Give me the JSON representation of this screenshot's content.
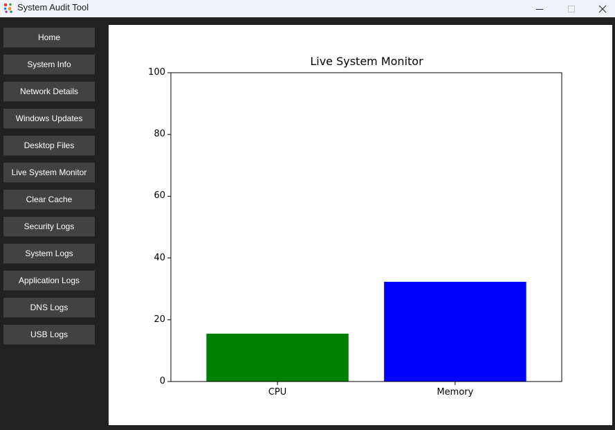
{
  "window": {
    "title": "System Audit Tool"
  },
  "sidebar": {
    "items": [
      {
        "label": "Home"
      },
      {
        "label": "System Info"
      },
      {
        "label": "Network Details"
      },
      {
        "label": "Windows Updates"
      },
      {
        "label": "Desktop Files"
      },
      {
        "label": "Live System Monitor"
      },
      {
        "label": "Clear Cache"
      },
      {
        "label": "Security Logs"
      },
      {
        "label": "System Logs"
      },
      {
        "label": "Application Logs"
      },
      {
        "label": "DNS Logs"
      },
      {
        "label": "USB Logs"
      }
    ]
  },
  "colors": {
    "sidebar_bg": "#212121",
    "button_bg": "#424242",
    "cpu_bar": "#008000",
    "memory_bar": "#0000ff"
  },
  "chart_data": {
    "type": "bar",
    "title": "Live System Monitor",
    "categories": [
      "CPU",
      "Memory"
    ],
    "values": [
      15.5,
      32.3
    ],
    "colors": [
      "#008000",
      "#0000ff"
    ],
    "ylim": [
      0,
      100
    ],
    "yticks": [
      0,
      20,
      40,
      60,
      80,
      100
    ],
    "grid": false
  }
}
